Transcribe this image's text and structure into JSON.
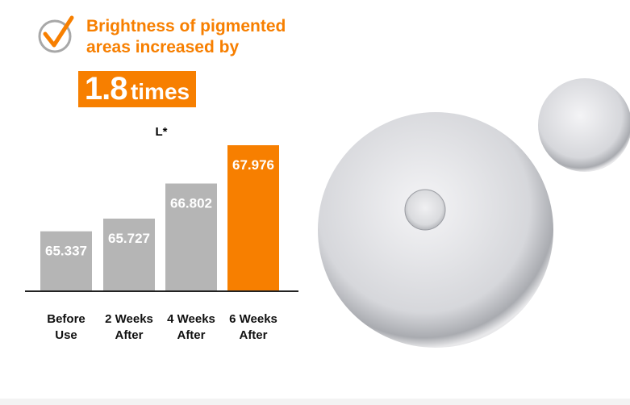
{
  "chart_data": {
    "type": "bar",
    "title": "Brightness of pigmented areas increased by",
    "highlight_value": "1.8",
    "highlight_unit": "times",
    "y_label": "L*",
    "categories": [
      "Before Use",
      "2 Weeks After",
      "4 Weeks After",
      "6 Weeks After"
    ],
    "values": [
      65.337,
      65.727,
      66.802,
      67.976
    ],
    "colors": [
      "#b5b5b5",
      "#b5b5b5",
      "#b5b5b5",
      "#f77f00"
    ],
    "ylim": [
      63.5,
      68.1
    ]
  }
}
